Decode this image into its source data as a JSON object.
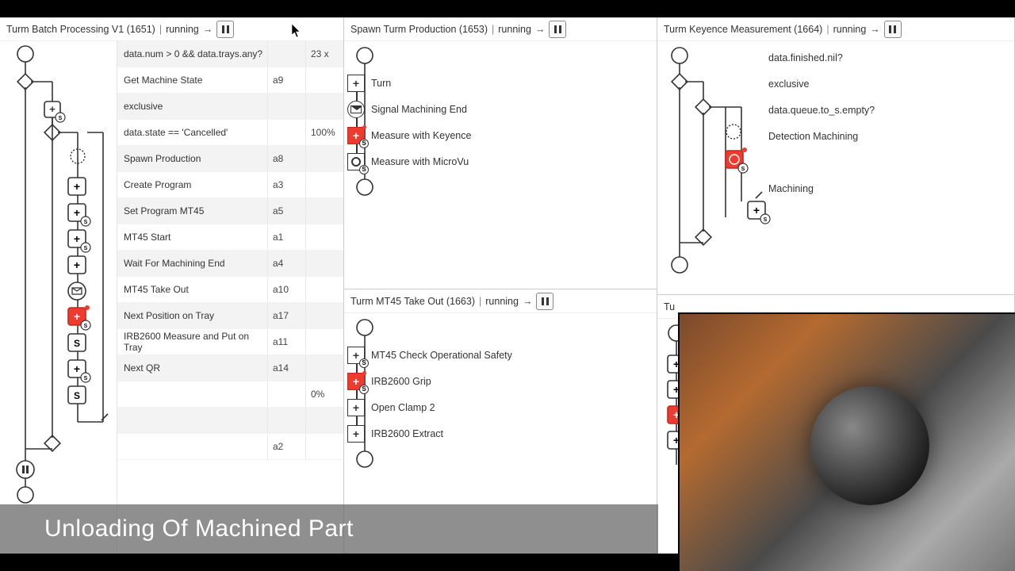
{
  "caption": "Unloading Of Machined Part",
  "status_label": "running",
  "arrow": "→",
  "pipe": "|",
  "panels": {
    "left": {
      "title": "Turm Batch Processing V1 (1651)",
      "rows": [
        {
          "label": "data.num > 0 && data.trays.any?",
          "code": "",
          "pct": "23 x"
        },
        {
          "label": "Get Machine State",
          "code": "a9",
          "pct": ""
        },
        {
          "label": "exclusive",
          "code": "",
          "pct": ""
        },
        {
          "label": "data.state == 'Cancelled'",
          "code": "",
          "pct": "100%"
        },
        {
          "label": "Spawn Production",
          "code": "a8",
          "pct": ""
        },
        {
          "label": "Create Program",
          "code": "a3",
          "pct": ""
        },
        {
          "label": "Set Program MT45",
          "code": "a5",
          "pct": ""
        },
        {
          "label": "MT45 Start",
          "code": "a1",
          "pct": ""
        },
        {
          "label": "Wait For Machining End",
          "code": "a4",
          "pct": ""
        },
        {
          "label": "MT45 Take Out",
          "code": "a10",
          "pct": ""
        },
        {
          "label": "Next Position on Tray",
          "code": "a17",
          "pct": ""
        },
        {
          "label": "IRB2600 Measure and Put on Tray",
          "code": "a11",
          "pct": ""
        },
        {
          "label": "Next QR",
          "code": "a14",
          "pct": ""
        },
        {
          "label": "",
          "code": "",
          "pct": "0%"
        },
        {
          "label": "",
          "code": "",
          "pct": ""
        },
        {
          "label": "",
          "code": "a2",
          "pct": ""
        }
      ]
    },
    "mid_top": {
      "title": "Spawn Turm Production (1653)",
      "items": [
        {
          "text": "Turn",
          "type": "plus"
        },
        {
          "text": "Signal Machining End",
          "type": "envelope"
        },
        {
          "text": "Measure with Keyence",
          "type": "red"
        },
        {
          "text": "Measure with MicroVu",
          "type": "gear"
        }
      ]
    },
    "mid_bot": {
      "title": "Turm MT45 Take Out (1663)",
      "items": [
        {
          "text": "MT45 Check Operational Safety",
          "type": "plus-s"
        },
        {
          "text": "IRB2600 Grip",
          "type": "red"
        },
        {
          "text": "Open Clamp 2",
          "type": "plus"
        },
        {
          "text": "IRB2600 Extract",
          "type": "plus"
        }
      ]
    },
    "right_top": {
      "title": "Turm Keyence Measurement (1664)",
      "rows": [
        "data.finished.nil?",
        "exclusive",
        "data.queue.to_s.empty?",
        "Detection Machining",
        "",
        "Machining"
      ]
    },
    "right_bot": {
      "title": "Tu"
    }
  },
  "colors": {
    "red": "#ee3b2f",
    "stroke": "#333333",
    "caption_bg": "rgba(100,100,100,0.72)"
  }
}
